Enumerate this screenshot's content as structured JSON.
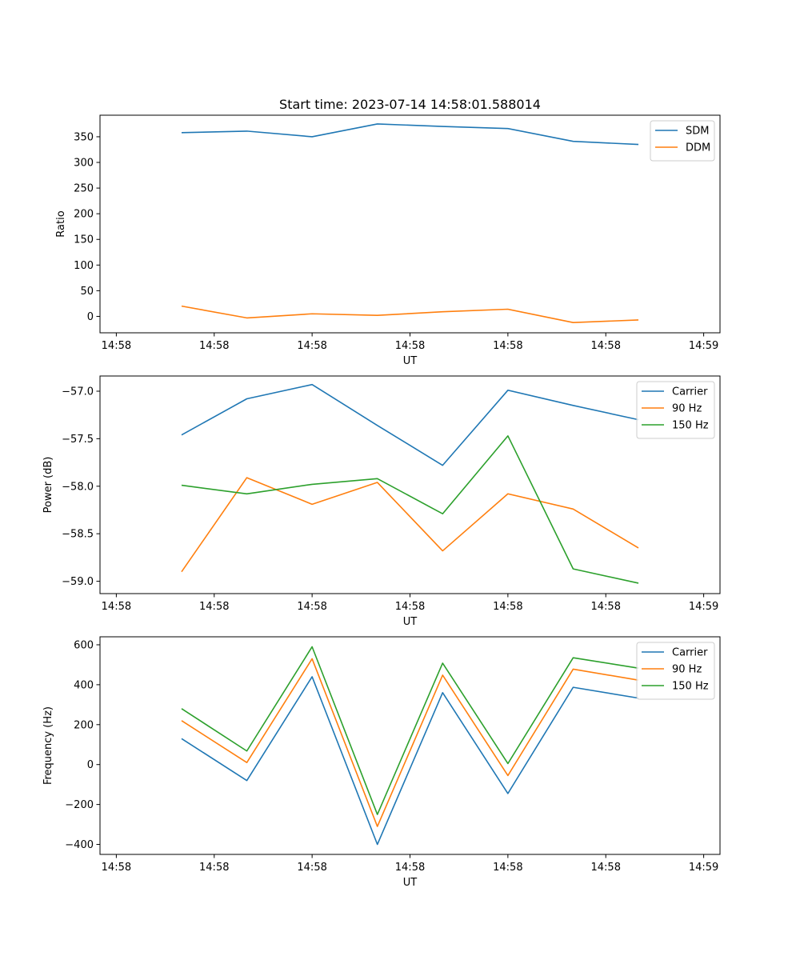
{
  "figure_title": "Start time: 2023-07-14 14:58:01.588014",
  "colors": {
    "blue": "#1f77b4",
    "orange": "#ff7f0e",
    "green": "#2ca02c"
  },
  "chart_data": [
    {
      "type": "line",
      "title": "Start time: 2023-07-14 14:58:01.588014",
      "xlabel": "UT",
      "ylabel": "Ratio",
      "x": [
        1,
        2,
        3,
        4,
        5,
        6,
        7,
        8
      ],
      "x_ticks": [
        0,
        1.5,
        3,
        4.5,
        6,
        7.5,
        9
      ],
      "x_tick_labels": [
        "14:58",
        "14:58",
        "14:58",
        "14:58",
        "14:58",
        "14:58",
        "14:59"
      ],
      "xlim": [
        -0.25,
        9.25
      ],
      "ylim": [
        -32,
        392
      ],
      "y_ticks": [
        0,
        50,
        100,
        150,
        200,
        250,
        300,
        350
      ],
      "y_tick_labels": [
        "0",
        "50",
        "100",
        "150",
        "200",
        "250",
        "300",
        "350"
      ],
      "legend_position": "top-right",
      "series": [
        {
          "name": "SDM",
          "color": "#1f77b4",
          "values": [
            358,
            361,
            350,
            375,
            370,
            366,
            341,
            335
          ]
        },
        {
          "name": "DDM",
          "color": "#ff7f0e",
          "values": [
            20,
            -3,
            5,
            2,
            9,
            14,
            -12,
            -7
          ]
        }
      ]
    },
    {
      "type": "line",
      "title": "",
      "xlabel": "UT",
      "ylabel": "Power (dB)",
      "x": [
        1,
        2,
        3,
        4,
        5,
        6,
        7,
        8
      ],
      "x_ticks": [
        0,
        1.5,
        3,
        4.5,
        6,
        7.5,
        9
      ],
      "x_tick_labels": [
        "14:58",
        "14:58",
        "14:58",
        "14:58",
        "14:58",
        "14:58",
        "14:59"
      ],
      "xlim": [
        -0.25,
        9.25
      ],
      "ylim": [
        -59.13,
        -56.84
      ],
      "y_ticks": [
        -59.0,
        -58.5,
        -58.0,
        -57.5,
        -57.0
      ],
      "y_tick_labels": [
        "−59.0",
        "−58.5",
        "−58.0",
        "−57.5",
        "−57.0"
      ],
      "legend_position": "top-right",
      "series": [
        {
          "name": "Carrier",
          "color": "#1f77b4",
          "values": [
            -57.46,
            -57.08,
            -56.93,
            -57.36,
            -57.78,
            -56.99,
            -57.15,
            -57.3
          ]
        },
        {
          "name": "90 Hz",
          "color": "#ff7f0e",
          "values": [
            -58.9,
            -57.91,
            -58.19,
            -57.96,
            -58.68,
            -58.08,
            -58.24,
            -58.65
          ]
        },
        {
          "name": "150 Hz",
          "color": "#2ca02c",
          "values": [
            -57.99,
            -58.08,
            -57.98,
            -57.92,
            -58.29,
            -57.47,
            -58.87,
            -59.02
          ]
        }
      ]
    },
    {
      "type": "line",
      "title": "",
      "xlabel": "UT",
      "ylabel": "Frequency (Hz)",
      "x": [
        1,
        2,
        3,
        4,
        5,
        6,
        7,
        8
      ],
      "x_ticks": [
        0,
        1.5,
        3,
        4.5,
        6,
        7.5,
        9
      ],
      "x_tick_labels": [
        "14:58",
        "14:58",
        "14:58",
        "14:58",
        "14:58",
        "14:58",
        "14:59"
      ],
      "xlim": [
        -0.25,
        9.25
      ],
      "ylim": [
        -450,
        640
      ],
      "y_ticks": [
        -400,
        -200,
        0,
        200,
        400,
        600
      ],
      "y_tick_labels": [
        "−400",
        "−200",
        "0",
        "200",
        "400",
        "600"
      ],
      "legend_position": "top-right",
      "series": [
        {
          "name": "Carrier",
          "color": "#1f77b4",
          "values": [
            130,
            -80,
            440,
            -400,
            360,
            -145,
            387,
            333
          ]
        },
        {
          "name": "90 Hz",
          "color": "#ff7f0e",
          "values": [
            220,
            10,
            530,
            -310,
            448,
            -55,
            478,
            423
          ]
        },
        {
          "name": "150 Hz",
          "color": "#2ca02c",
          "values": [
            280,
            68,
            590,
            -250,
            508,
            5,
            535,
            483
          ]
        }
      ]
    }
  ]
}
